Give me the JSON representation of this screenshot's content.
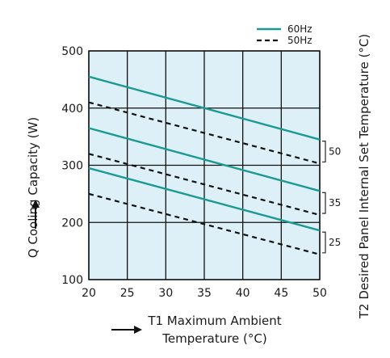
{
  "chart_data": {
    "type": "line",
    "xlabel_line1": "T1 Maximum Ambient",
    "xlabel_line2": "Temperature (°C)",
    "ylabel": "Q Cooling Capacity (W)",
    "right_label": "T2 Desired Panel Internal Set Temperature (°C)",
    "xlim": [
      20,
      50
    ],
    "ylim": [
      100,
      500
    ],
    "x_ticks": [
      "20",
      "25",
      "30",
      "35",
      "40",
      "45",
      "50"
    ],
    "y_ticks": [
      "100",
      "200",
      "300",
      "400",
      "500"
    ],
    "grid": true,
    "legend_position": "top-right",
    "legend": [
      {
        "name": "60Hz",
        "style": "solid",
        "color": "#1a9a93"
      },
      {
        "name": "50Hz",
        "style": "dashed",
        "color": "#111111"
      }
    ],
    "set_temperatures": [
      "50",
      "35",
      "25"
    ],
    "series": [
      {
        "name": "60Hz",
        "set_temp": "50",
        "style": "solid",
        "x": [
          20,
          50
        ],
        "y": [
          455,
          345
        ]
      },
      {
        "name": "50Hz",
        "set_temp": "50",
        "style": "dashed",
        "x": [
          20,
          50
        ],
        "y": [
          410,
          303
        ]
      },
      {
        "name": "60Hz",
        "set_temp": "35",
        "style": "solid",
        "x": [
          20,
          50
        ],
        "y": [
          365,
          255
        ]
      },
      {
        "name": "50Hz",
        "set_temp": "35",
        "style": "dashed",
        "x": [
          20,
          50
        ],
        "y": [
          320,
          213
        ]
      },
      {
        "name": "60Hz",
        "set_temp": "25",
        "style": "solid",
        "x": [
          20,
          50
        ],
        "y": [
          295,
          186
        ]
      },
      {
        "name": "50Hz",
        "set_temp": "25",
        "style": "dashed",
        "x": [
          20,
          50
        ],
        "y": [
          250,
          144
        ]
      }
    ],
    "colors": {
      "plot_background": "#ddf0f8",
      "grid": "#111111",
      "series_60hz": "#1a9a93",
      "series_50hz": "#111111"
    }
  }
}
